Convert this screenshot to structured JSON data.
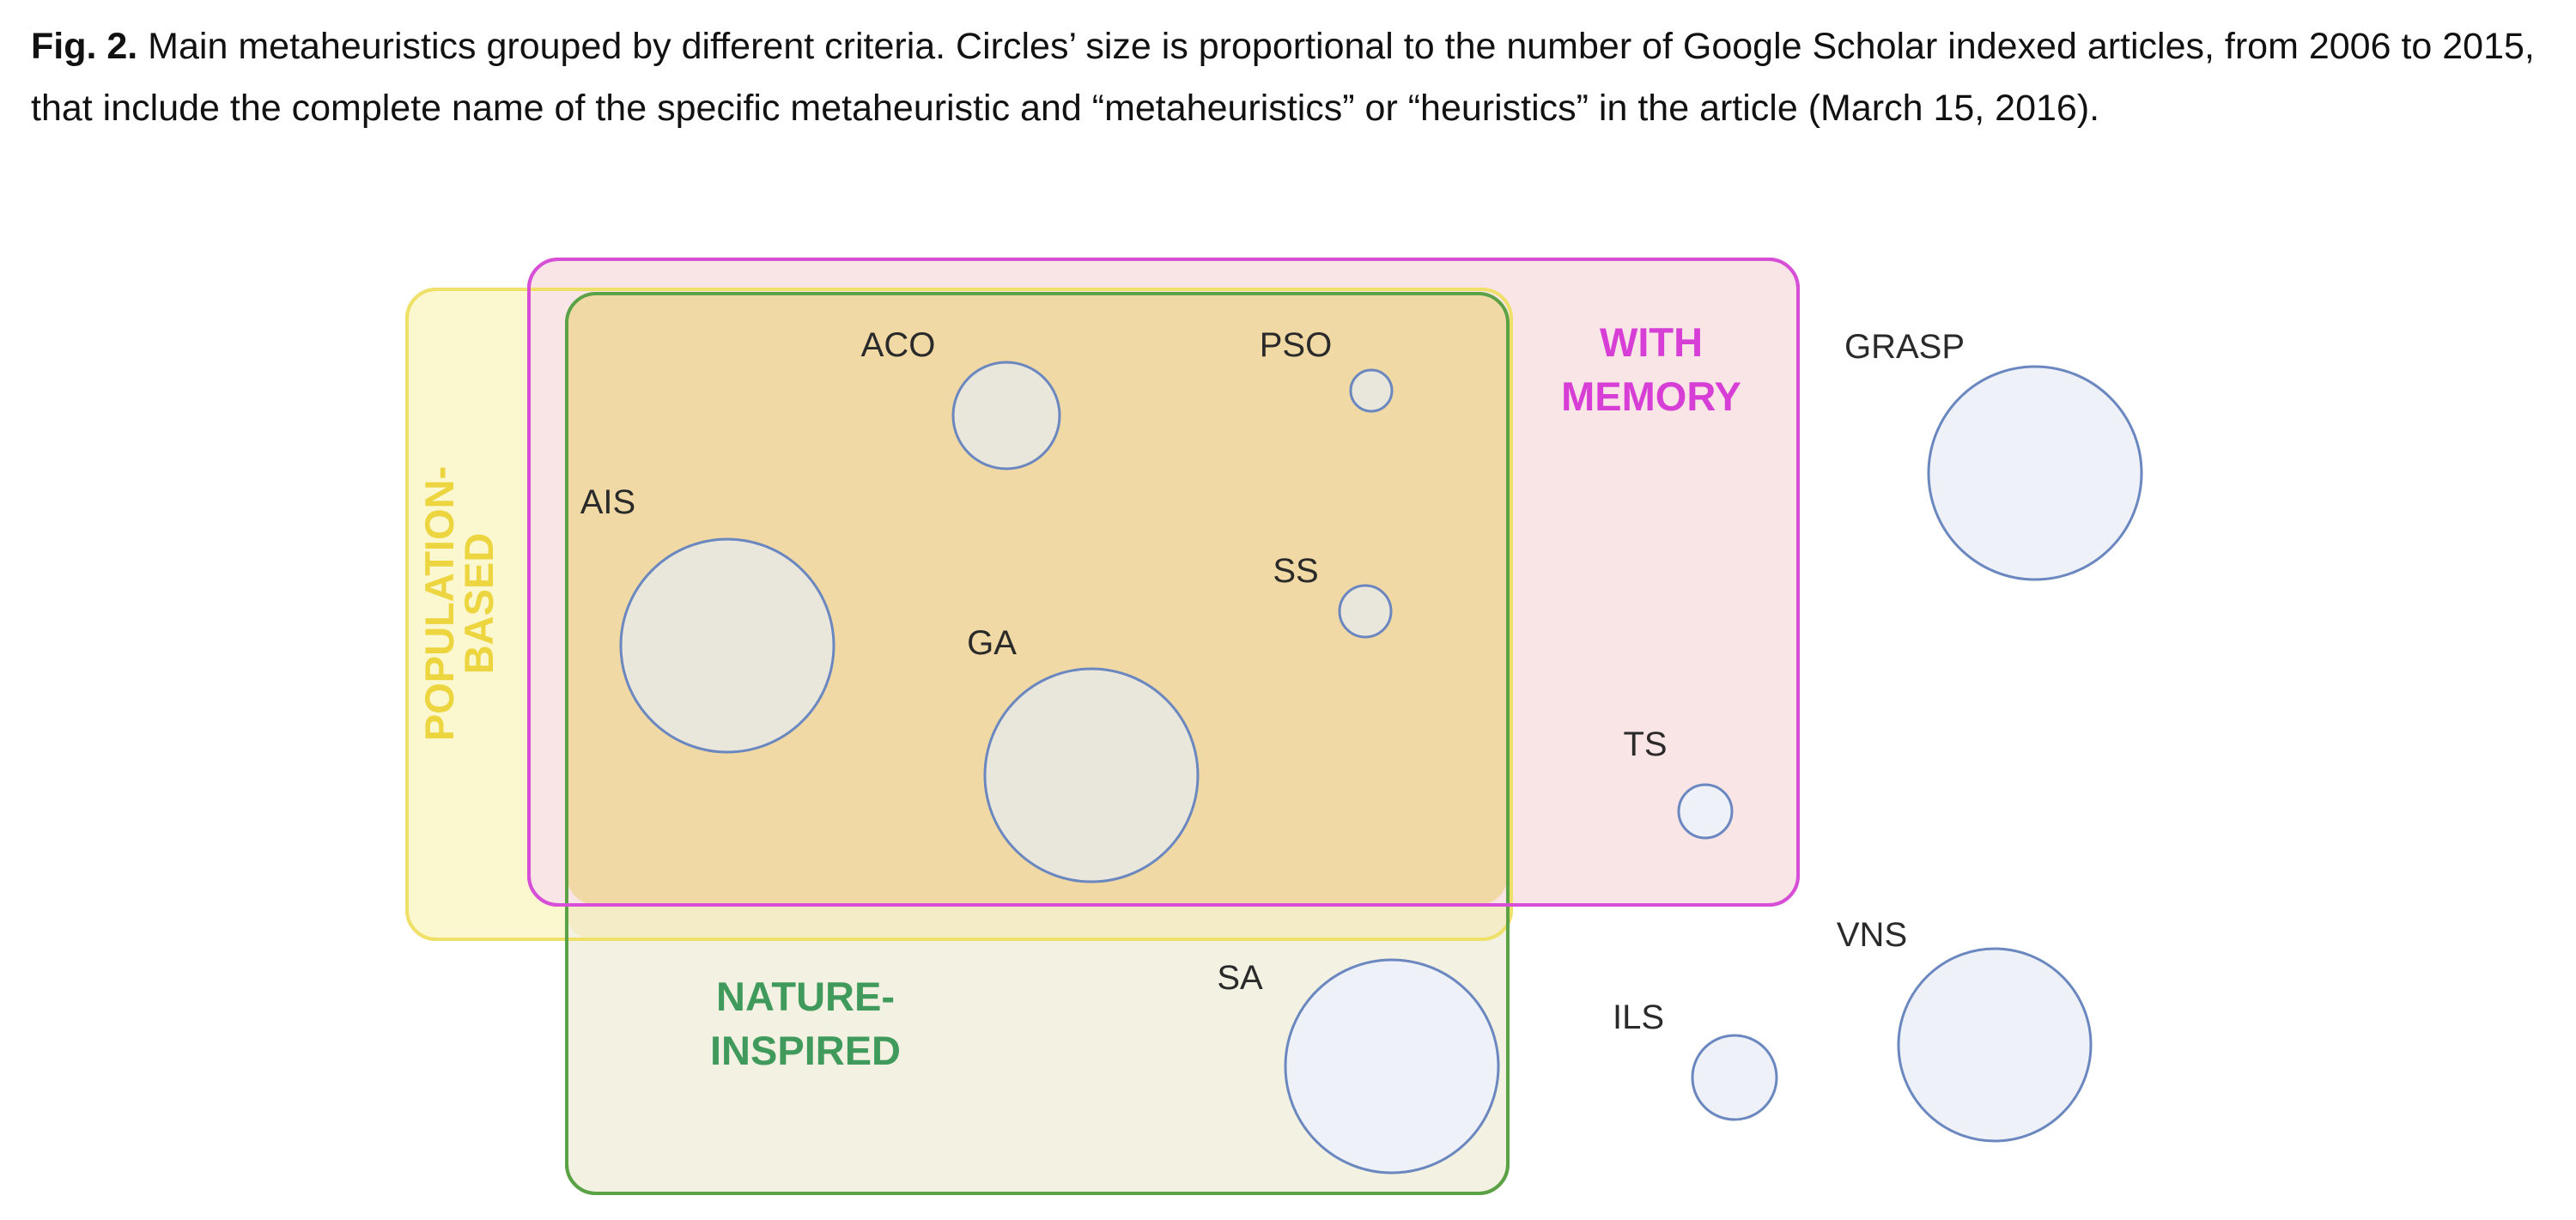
{
  "caption": {
    "label": "Fig. 2.",
    "text": " Main metaheuristics grouped by different criteria. Circles’ size is proportional to the number of Google Scholar indexed articles, from 2006 to 2015, that include the complete name of the specific metaheuristic and “metaheuristics” or “heuristics” in the article (March 15, 2016)."
  },
  "sets": {
    "population_based": {
      "line1": "POPULATION-",
      "line2": "BASED",
      "color": "#ecd53f"
    },
    "with_memory": {
      "line1": "WITH",
      "line2": "MEMORY",
      "color": "#d63ed6"
    },
    "nature_inspired": {
      "line1": "NATURE-",
      "line2": "INSPIRED",
      "color": "#3f9a5c"
    }
  },
  "metaheuristics": {
    "aco": "ACO",
    "pso": "PSO",
    "ais": "AIS",
    "ss": "SS",
    "ga": "GA",
    "ts": "TS",
    "sa": "SA",
    "grasp": "GRASP",
    "vns": "VNS",
    "ils": "ILS"
  },
  "colors": {
    "circle_stroke": "#6b87c0",
    "circle_fill": "#e9e6dc",
    "outside_circle_fill": "#eef1f8"
  }
}
